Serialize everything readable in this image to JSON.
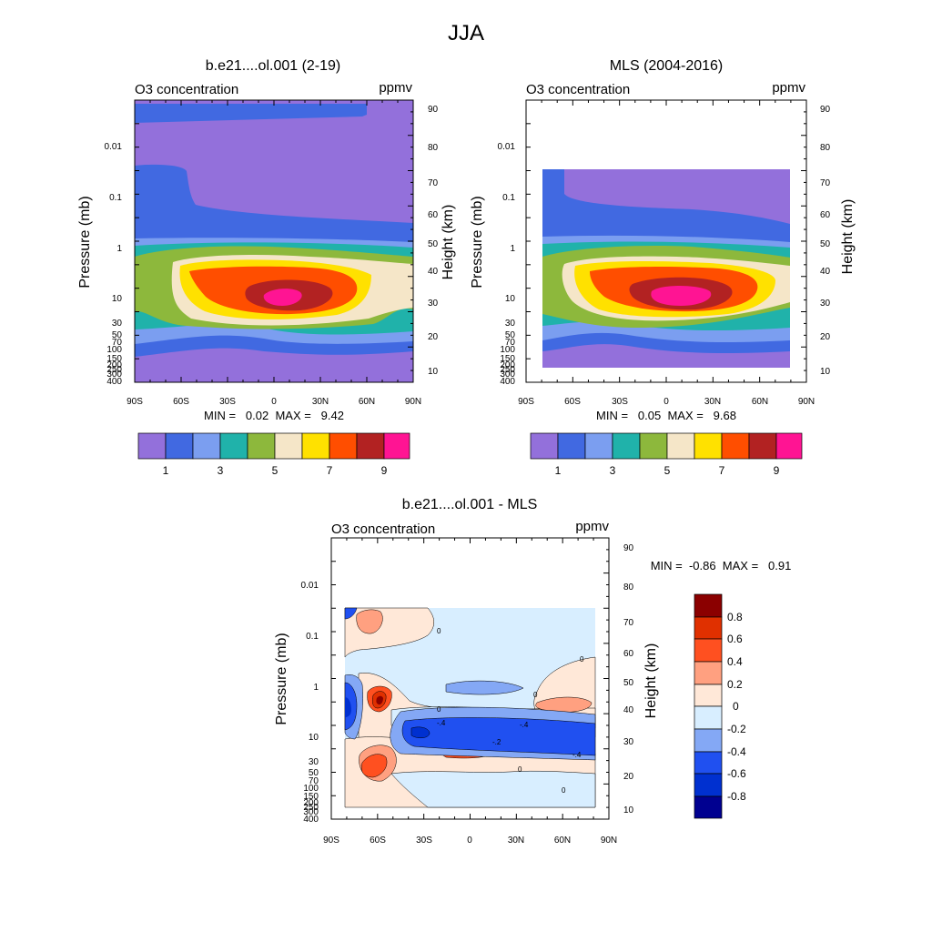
{
  "title": "JJA",
  "chart_data": [
    {
      "type": "heatmap",
      "title": "b.e21....ol.001 (2-19)",
      "left_label": "O3 concentration",
      "right_label": "ppmv",
      "xlabel": "",
      "ylabel": "Pressure (mb)",
      "ylabel_right": "Height (km)",
      "x_ticks": [
        "90S",
        "60S",
        "30S",
        "0",
        "30N",
        "60N",
        "90N"
      ],
      "y_ticks": [
        "0.01",
        "0.1",
        "1",
        "10",
        "30",
        "50",
        "70",
        "100",
        "150",
        "200",
        "250",
        "300",
        "400"
      ],
      "height_ticks": [
        "10",
        "20",
        "30",
        "40",
        "50",
        "60",
        "70",
        "80",
        "90"
      ],
      "min_max_text": "MIN =   0.02  MAX =   9.42",
      "colorbar_labels": [
        "1",
        "3",
        "5",
        "7",
        "9"
      ],
      "contour_levels": [
        1,
        2,
        3,
        4,
        5,
        6,
        7,
        8,
        9
      ]
    },
    {
      "type": "heatmap",
      "title": "MLS (2004-2016)",
      "left_label": "O3 concentration",
      "right_label": "ppmv",
      "xlabel": "",
      "ylabel": "Pressure (mb)",
      "ylabel_right": "Height (km)",
      "x_ticks": [
        "90S",
        "60S",
        "30S",
        "0",
        "30N",
        "60N",
        "90N"
      ],
      "y_ticks": [
        "0.01",
        "0.1",
        "1",
        "10",
        "30",
        "50",
        "70",
        "100",
        "150",
        "200",
        "250",
        "300",
        "400"
      ],
      "height_ticks": [
        "10",
        "20",
        "30",
        "40",
        "50",
        "60",
        "70",
        "80",
        "90"
      ],
      "min_max_text": "MIN =   0.05  MAX =   9.68",
      "colorbar_labels": [
        "1",
        "3",
        "5",
        "7",
        "9"
      ],
      "contour_levels": [
        1,
        2,
        3,
        4,
        5,
        6,
        7,
        8,
        9
      ]
    },
    {
      "type": "heatmap",
      "title": "b.e21....ol.001 - MLS",
      "left_label": "O3 concentration",
      "right_label": "ppmv",
      "xlabel": "",
      "ylabel": "Pressure (mb)",
      "ylabel_right": "Height (km)",
      "x_ticks": [
        "90S",
        "60S",
        "30S",
        "0",
        "30N",
        "60N",
        "90N"
      ],
      "y_ticks": [
        "0.01",
        "0.1",
        "1",
        "10",
        "30",
        "50",
        "70",
        "100",
        "150",
        "200",
        "250",
        "300",
        "400"
      ],
      "height_ticks": [
        "10",
        "20",
        "30",
        "40",
        "50",
        "60",
        "70",
        "80",
        "90"
      ],
      "min_max_text": "MIN =  -0.86  MAX =   0.91",
      "colorbar_labels": [
        "0.8",
        "0.6",
        "0.4",
        "0.2",
        "0",
        "-0.2",
        "-0.4",
        "-0.6",
        "-0.8"
      ],
      "contour_labels": [
        "0",
        "-.4",
        "-.2"
      ],
      "contour_levels": [
        -0.8,
        -0.6,
        -0.4,
        -0.2,
        0,
        0.2,
        0.4,
        0.6,
        0.8
      ]
    }
  ],
  "colors": {
    "seq": [
      "#9370DB",
      "#4169E1",
      "#7B9EF0",
      "#20B2AA",
      "#8DB83C",
      "#F5E6C8",
      "#FFE100",
      "#FF4E00",
      "#B22222",
      "#FF1493"
    ],
    "div": [
      "#8B0000",
      "#E03000",
      "#FF5020",
      "#FFA080",
      "#FFE8D8",
      "#D8EEFF",
      "#84A8F5",
      "#2050F0",
      "#0030D0",
      "#000090"
    ]
  }
}
